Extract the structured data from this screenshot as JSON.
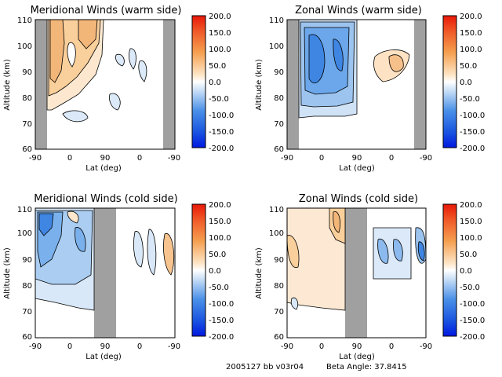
{
  "footer": {
    "run_label": "2005127 bb v03r04",
    "beta_angle": "Beta Angle: 37.8415"
  },
  "colorbar": {
    "ticks": [
      "200.0",
      "150.0",
      "100.0",
      "50.0",
      "0.0",
      "-50.0",
      "-100.0",
      "-150.0",
      "-200.0"
    ],
    "range": [
      -200,
      200
    ],
    "colors": {
      "max": "#e02010",
      "positive": "#f5a050",
      "zero": "#ffffff",
      "negative": "#4a90e8",
      "min": "#0020e0"
    }
  },
  "chart_data": [
    {
      "type": "heatmap",
      "title": "Meridional Winds (warm side)",
      "xlabel": "Lat (deg)",
      "ylabel": "Altitude (km)",
      "xticks": [
        "-90",
        "0",
        "90",
        "0",
        "-90"
      ],
      "yticks": [
        "110",
        "100",
        "90",
        "80",
        "70",
        "60"
      ],
      "ylim": [
        60,
        110
      ],
      "masked_color": "#a0a0a0",
      "field_sign": "mostly positive"
    },
    {
      "type": "heatmap",
      "title": "Zonal Winds (warm side)",
      "xlabel": "Lat (deg)",
      "ylabel": "Altitude (km)",
      "xticks": [
        "-90",
        "0",
        "90",
        "0",
        "-90"
      ],
      "yticks": [
        "110",
        "100",
        "90",
        "80",
        "70",
        "60"
      ],
      "ylim": [
        60,
        110
      ],
      "masked_color": "#a0a0a0",
      "field_sign": "mostly negative"
    },
    {
      "type": "heatmap",
      "title": "Meridional Winds (cold side)",
      "xlabel": "Lat (deg)",
      "ylabel": "Altitude (km)",
      "xticks": [
        "-90",
        "0",
        "90",
        "0",
        "-90"
      ],
      "yticks": [
        "110",
        "100",
        "90",
        "80",
        "70",
        "60"
      ],
      "ylim": [
        60,
        110
      ],
      "masked_color": "#a0a0a0",
      "field_sign": "mostly negative"
    },
    {
      "type": "heatmap",
      "title": "Zonal Winds (cold side)",
      "xlabel": "Lat (deg)",
      "ylabel": "Altitude (km)",
      "xticks": [
        "-90",
        "0",
        "90",
        "0",
        "-90"
      ],
      "yticks": [
        "110",
        "100",
        "90",
        "80",
        "70",
        "60"
      ],
      "ylim": [
        60,
        110
      ],
      "masked_color": "#a0a0a0",
      "field_sign": "mixed"
    }
  ]
}
